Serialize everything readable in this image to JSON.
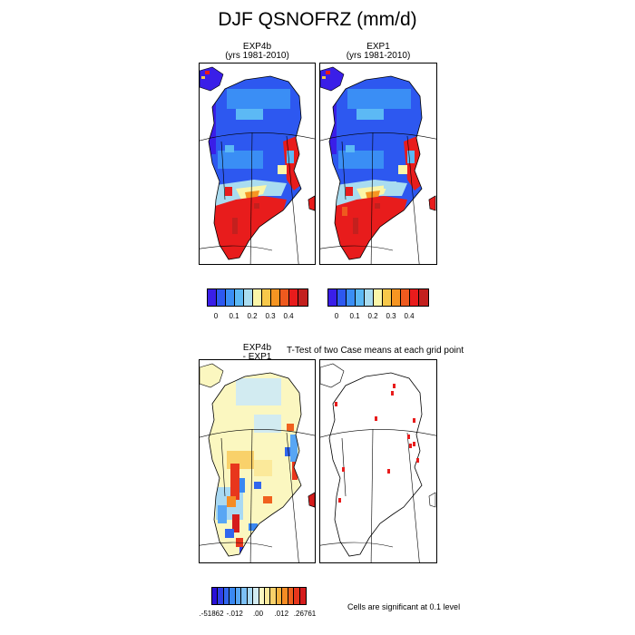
{
  "title": "DJF QSNOFRZ (mm/d)",
  "panels": {
    "p1": {
      "line1": "EXP4b",
      "line2": "(yrs 1981-2010)"
    },
    "p2": {
      "line1": "EXP1",
      "line2": "(yrs 1981-2010)"
    },
    "p3": {
      "line1": "EXP4b",
      "line2": "- EXP1"
    },
    "ttest": "T-Test of two Case means at each grid point"
  },
  "colorbar_abs": {
    "colors": [
      "#3a1ee8",
      "#2d58f0",
      "#3a8ef5",
      "#5cb9f5",
      "#a9dcf0",
      "#fbf6a8",
      "#f7c84a",
      "#f69522",
      "#ef5a1e",
      "#e81c1c",
      "#c3201e"
    ],
    "labels": [
      "0",
      "0.1",
      "0.2",
      "0.3",
      "0.4"
    ]
  },
  "colorbar_diff": {
    "colors": [
      "#2a10d8",
      "#2f3ee8",
      "#3166ee",
      "#3a88f2",
      "#58a6f4",
      "#7cc0f5",
      "#a9d9f3",
      "#d2ebf1",
      "#fbf7c0",
      "#fbe99a",
      "#f9d16a",
      "#f7b13c",
      "#f58c24",
      "#f0611e",
      "#e8361c",
      "#d51c1c"
    ],
    "labels": [
      ".-51862",
      "-.012",
      ".00",
      ".012",
      ".26761"
    ]
  },
  "note": "Cells are significant at 0.1 level"
}
